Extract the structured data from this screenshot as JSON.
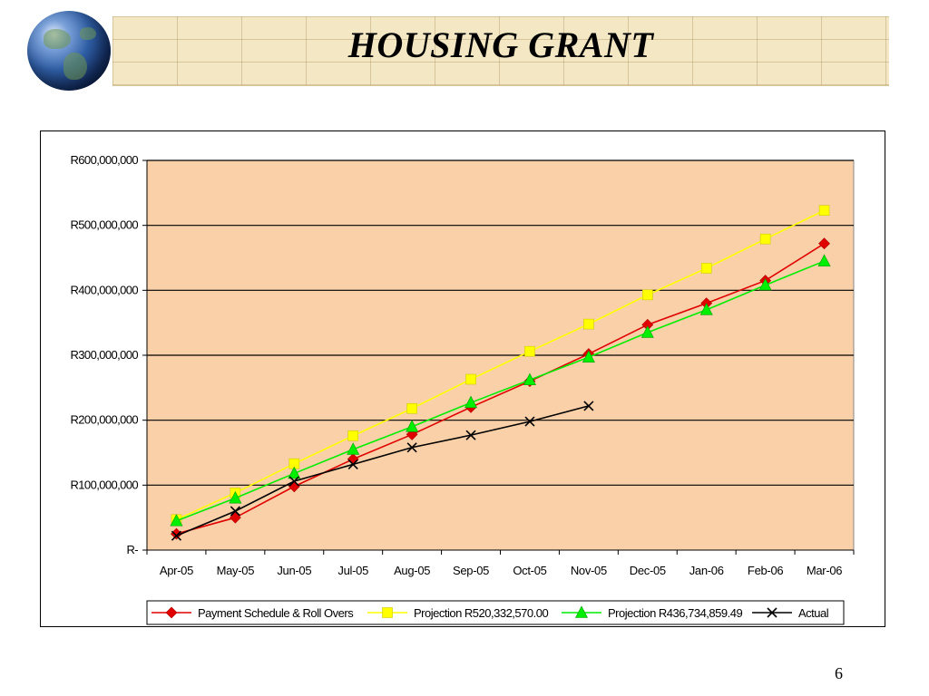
{
  "slide": {
    "title": "HOUSING GRANT",
    "page_number": "6"
  },
  "chart_data": {
    "type": "line",
    "categories": [
      "Apr-05",
      "May-05",
      "Jun-05",
      "Jul-05",
      "Aug-05",
      "Sep-05",
      "Oct-05",
      "Nov-05",
      "Dec-05",
      "Jan-06",
      "Feb-06",
      "Mar-06"
    ],
    "ytick_labels": [
      "R-",
      "R100,000,000",
      "R200,000,000",
      "R300,000,000",
      "R400,000,000",
      "R500,000,000",
      "R600,000,000"
    ],
    "yticks": [
      0,
      100000000,
      200000000,
      300000000,
      400000000,
      500000000,
      600000000
    ],
    "ylim": [
      0,
      600000000
    ],
    "grid": true,
    "legend_position": "bottom",
    "plot_background": "#f9d0a8",
    "series": [
      {
        "name": "Payment Schedule & Roll Overs",
        "color": "#e00000",
        "marker": "diamond",
        "values": [
          25000000,
          50000000,
          98000000,
          140000000,
          178000000,
          220000000,
          260000000,
          302000000,
          347000000,
          380000000,
          415000000,
          472000000
        ]
      },
      {
        "name": "Projection  R520,332,570.00",
        "color": "#ffff00",
        "marker": "square",
        "values": [
          47000000,
          88000000,
          133000000,
          176000000,
          218000000,
          263000000,
          306000000,
          348000000,
          393000000,
          434000000,
          479000000,
          523000000
        ]
      },
      {
        "name": "Projection  R436,734,859.49",
        "color": "#00ee00",
        "marker": "triangle",
        "values": [
          45000000,
          80000000,
          118000000,
          155000000,
          190000000,
          227000000,
          262000000,
          297000000,
          335000000,
          370000000,
          408000000,
          445000000
        ]
      },
      {
        "name": "Actual",
        "color": "#000000",
        "marker": "x",
        "values": [
          22000000,
          60000000,
          106000000,
          132000000,
          158000000,
          177000000,
          198000000,
          222000000,
          null,
          null,
          null,
          null
        ]
      }
    ]
  }
}
